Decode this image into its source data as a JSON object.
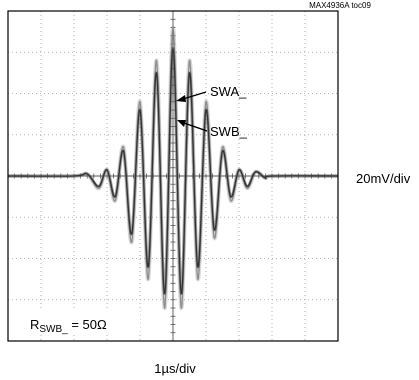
{
  "chart_data": {
    "type": "line",
    "figure_tag": "MAX4936A toc09",
    "x_scale_label": "1µs/div",
    "y_scale_label": "20mV/div",
    "grid": true,
    "divisions": {
      "x": 10,
      "y": 8
    },
    "x_unit": "µs",
    "y_unit": "mV",
    "xlim": [
      -5,
      5
    ],
    "ylim": [
      -80,
      80
    ],
    "condition_label": {
      "prefix": "R",
      "subscript": "SWB_",
      "suffix": " = 50Ω"
    },
    "series": [
      {
        "name": "SWA_",
        "color": "#8c8c8c",
        "x": [
          -5.0,
          -3.0,
          -2.6,
          -2.25,
          -2.0,
          -1.75,
          -1.5,
          -1.25,
          -1.0,
          -0.75,
          -0.5,
          -0.25,
          0.0,
          0.25,
          0.5,
          0.75,
          1.0,
          1.25,
          1.5,
          1.75,
          2.0,
          2.25,
          2.5,
          2.8,
          3.0,
          5.0
        ],
        "y": [
          0,
          0,
          1,
          -6,
          3,
          -12,
          14,
          -32,
          36,
          -50,
          56,
          -64,
          72,
          -64,
          56,
          -50,
          36,
          -30,
          14,
          -12,
          3,
          -6,
          2,
          -1,
          0,
          0
        ]
      },
      {
        "name": "SWB_",
        "color": "#333333",
        "x": [
          -5.0,
          -3.0,
          -2.6,
          -2.25,
          -2.0,
          -1.75,
          -1.5,
          -1.25,
          -1.0,
          -0.75,
          -0.5,
          -0.25,
          0.0,
          0.25,
          0.5,
          0.75,
          1.0,
          1.25,
          1.5,
          1.75,
          2.0,
          2.25,
          2.5,
          2.8,
          3.0,
          5.0
        ],
        "y": [
          0,
          0,
          1,
          -5,
          3,
          -10,
          12,
          -28,
          32,
          -44,
          50,
          -57,
          62,
          -57,
          50,
          -44,
          32,
          -26,
          12,
          -10,
          3,
          -5,
          2,
          -1,
          0,
          0
        ]
      }
    ],
    "annotations": [
      {
        "text": "SWA_",
        "series": "SWA_"
      },
      {
        "text": "SWB_",
        "series": "SWB_"
      }
    ]
  }
}
